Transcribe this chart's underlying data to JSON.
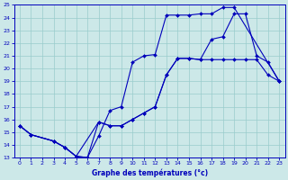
{
  "xlabel": "Graphe des températures (°c)",
  "ylim": [
    13,
    25
  ],
  "xlim": [
    -0.5,
    23.5
  ],
  "yticks": [
    13,
    14,
    15,
    16,
    17,
    18,
    19,
    20,
    21,
    22,
    23,
    24,
    25
  ],
  "xticks": [
    0,
    1,
    2,
    3,
    4,
    5,
    6,
    7,
    8,
    9,
    10,
    11,
    12,
    13,
    14,
    15,
    16,
    17,
    18,
    19,
    20,
    21,
    22,
    23
  ],
  "bg_color": "#cce8e8",
  "line_color": "#0000bb",
  "grid_color": "#99cccc",
  "line1_x": [
    0,
    1,
    3,
    4,
    5,
    7,
    8,
    9,
    10,
    11,
    12,
    13,
    14,
    15,
    16,
    17,
    18,
    19,
    20,
    21,
    22,
    23
  ],
  "line1_y": [
    15.5,
    14.8,
    14.3,
    13.8,
    13.1,
    15.8,
    15.5,
    15.5,
    16.0,
    16.5,
    17.0,
    19.5,
    20.8,
    20.8,
    20.7,
    22.3,
    22.5,
    24.3,
    24.3,
    21.0,
    20.5,
    19.0
  ],
  "line2_x": [
    0,
    1,
    3,
    4,
    5,
    6,
    7,
    8,
    9,
    10,
    11,
    12,
    13,
    14,
    15,
    16,
    17,
    18,
    19,
    23
  ],
  "line2_y": [
    15.5,
    14.8,
    14.3,
    13.8,
    13.1,
    13.0,
    14.7,
    16.7,
    17.0,
    20.5,
    21.0,
    21.1,
    24.2,
    24.2,
    24.2,
    24.3,
    24.3,
    24.8,
    24.8,
    19.0
  ],
  "line3_x": [
    0,
    1,
    3,
    4,
    5,
    6,
    7,
    8,
    9,
    10,
    11,
    12,
    13,
    14,
    15,
    16,
    17,
    18,
    19,
    20,
    21,
    22,
    23
  ],
  "line3_y": [
    15.5,
    14.8,
    14.3,
    13.8,
    13.1,
    13.0,
    15.8,
    15.5,
    15.5,
    16.0,
    16.5,
    17.0,
    19.5,
    20.8,
    20.8,
    20.7,
    20.7,
    20.7,
    20.7,
    20.7,
    20.7,
    19.5,
    19.0
  ]
}
